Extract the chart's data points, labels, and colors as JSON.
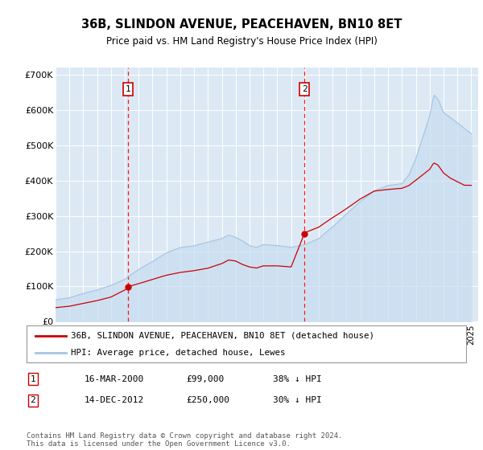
{
  "title": "36B, SLINDON AVENUE, PEACEHAVEN, BN10 8ET",
  "subtitle": "Price paid vs. HM Land Registry's House Price Index (HPI)",
  "hpi_label": "HPI: Average price, detached house, Lewes",
  "property_label": "36B, SLINDON AVENUE, PEACEHAVEN, BN10 8ET (detached house)",
  "hpi_color": "#a8c4e0",
  "hpi_fill_color": "#c8ddf0",
  "property_color": "#cc0000",
  "marker_color": "#cc0000",
  "background_color": "#dce9f5",
  "annotation1_date": "16-MAR-2000",
  "annotation1_price": "£99,000",
  "annotation1_pct": "38% ↓ HPI",
  "annotation2_date": "14-DEC-2012",
  "annotation2_price": "£250,000",
  "annotation2_pct": "30% ↓ HPI",
  "footer": "Contains HM Land Registry data © Crown copyright and database right 2024.\nThis data is licensed under the Open Government Licence v3.0.",
  "ylim": [
    0,
    720000
  ],
  "yticks": [
    0,
    100000,
    200000,
    300000,
    400000,
    500000,
    600000,
    700000
  ],
  "ytick_labels": [
    "£0",
    "£100K",
    "£200K",
    "£300K",
    "£400K",
    "£500K",
    "£600K",
    "£700K"
  ],
  "sale1_x": 2000.21,
  "sale1_y": 99000,
  "sale2_x": 2012.96,
  "sale2_y": 250000,
  "vline1_x": 2000.21,
  "vline2_x": 2012.96,
  "xlim_left": 1995.0,
  "xlim_right": 2025.5
}
